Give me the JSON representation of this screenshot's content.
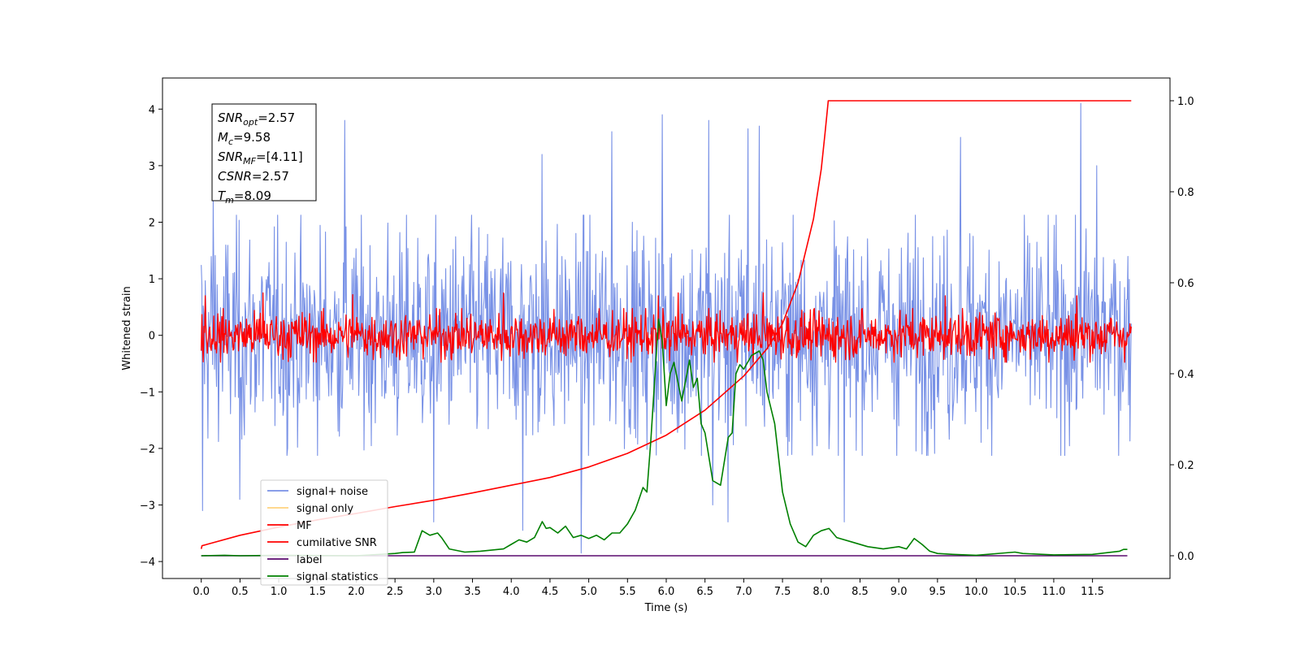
{
  "chart_data": {
    "type": "line",
    "title": "",
    "xlabel": "Time (s)",
    "ylabel_left": "Whitened strain",
    "ylabel_right": "",
    "xlim": [
      -0.5,
      12.5
    ],
    "ylim_left": [
      -4.3,
      4.55
    ],
    "ylim_right": [
      -0.05,
      1.05
    ],
    "grid": false,
    "legend_position": "lower-left",
    "x_ticks": [
      0.0,
      0.5,
      1.0,
      1.5,
      2.0,
      2.5,
      3.0,
      3.5,
      4.0,
      4.5,
      5.0,
      5.5,
      6.0,
      6.5,
      7.0,
      7.5,
      8.0,
      8.5,
      9.0,
      9.5,
      10.0,
      10.5,
      11.0,
      11.5
    ],
    "x_tick_labels": [
      "0.0",
      "0.5",
      "1.0",
      "1.5",
      "2.0",
      "2.5",
      "3.0",
      "3.5",
      "4.0",
      "4.5",
      "5.0",
      "5.5",
      "6.0",
      "6.5",
      "7.0",
      "7.5",
      "8.0",
      "8.5",
      "9.0",
      "9.5",
      "10.0",
      "10.5",
      "11.0",
      "11.5"
    ],
    "y_ticks_left": [
      -4,
      -3,
      -2,
      -1,
      0,
      1,
      2,
      3,
      4
    ],
    "y_tick_labels_left": [
      "−4",
      "−3",
      "−2",
      "−1",
      "0",
      "1",
      "2",
      "3",
      "4"
    ],
    "y_ticks_right": [
      0.0,
      0.2,
      0.4,
      0.6,
      0.8,
      1.0
    ],
    "y_tick_labels_right": [
      "0.0",
      "0.2",
      "0.4",
      "0.6",
      "0.8",
      "1.0"
    ],
    "annotation": {
      "lines": [
        {
          "sym": "SNR",
          "sub": "opt",
          "rest": "=2.57"
        },
        {
          "sym": "M",
          "sub": "c",
          "rest": "=9.58"
        },
        {
          "sym": "SNR",
          "sub": "MF",
          "rest": "=[4.11]"
        },
        {
          "sym": "CSNR",
          "sub": "",
          "rest": "=2.57"
        },
        {
          "sym": "T",
          "sub": "m",
          "rest": "=8.09"
        }
      ]
    },
    "series": [
      {
        "name": "signal+ noise",
        "axis": "left",
        "color": "#7891e6",
        "kind": "noise",
        "x_range": [
          0.0,
          12.0
        ],
        "mean": 0.0,
        "band": [
          -1.7,
          1.7
        ],
        "peaks": [
          [
            0.02,
            -3.1
          ],
          [
            0.15,
            2.4
          ],
          [
            0.5,
            -2.9
          ],
          [
            1.85,
            3.8
          ],
          [
            3.0,
            -3.3
          ],
          [
            4.15,
            -3.45
          ],
          [
            4.4,
            3.2
          ],
          [
            4.9,
            -3.85
          ],
          [
            5.3,
            3.6
          ],
          [
            5.95,
            3.9
          ],
          [
            6.55,
            3.8
          ],
          [
            6.6,
            -3.0
          ],
          [
            6.8,
            -3.3
          ],
          [
            7.05,
            3.65
          ],
          [
            7.2,
            3.7
          ],
          [
            8.3,
            -3.3
          ],
          [
            9.8,
            3.5
          ],
          [
            11.35,
            4.1
          ],
          [
            11.55,
            3.0
          ]
        ]
      },
      {
        "name": "signal only",
        "axis": "left",
        "color": "#ffd27f",
        "kind": "hidden",
        "x": [
          0.0,
          12.0
        ],
        "y": [
          0.0,
          0.0
        ]
      },
      {
        "name": "MF",
        "axis": "left",
        "color": "#ff0000",
        "kind": "noise",
        "x_range": [
          0.0,
          12.0
        ],
        "mean": 0.0,
        "band": [
          -0.38,
          0.38
        ],
        "peaks": [
          [
            0.05,
            0.7
          ],
          [
            0.8,
            0.75
          ],
          [
            1.95,
            0.72
          ],
          [
            3.9,
            0.75
          ],
          [
            5.9,
            0.7
          ],
          [
            6.15,
            0.75
          ],
          [
            7.25,
            0.75
          ],
          [
            9.6,
            0.7
          ],
          [
            11.3,
            0.7
          ]
        ]
      },
      {
        "name": "cumilative SNR",
        "axis": "right",
        "color": "#ff0000",
        "kind": "line",
        "x": [
          0.0,
          0.01,
          0.5,
          1.0,
          1.5,
          2.0,
          2.5,
          3.0,
          3.5,
          4.0,
          4.5,
          5.0,
          5.5,
          6.0,
          6.5,
          7.0,
          7.3,
          7.5,
          7.7,
          7.9,
          8.0,
          8.05,
          8.09,
          8.1,
          12.0
        ],
        "y": [
          0.015,
          0.022,
          0.045,
          0.063,
          0.079,
          0.093,
          0.108,
          0.122,
          0.138,
          0.155,
          0.172,
          0.195,
          0.225,
          0.265,
          0.32,
          0.395,
          0.455,
          0.51,
          0.6,
          0.74,
          0.85,
          0.93,
          1.0,
          1.0,
          1.0
        ]
      },
      {
        "name": "label",
        "axis": "right",
        "color": "#5a0a6e",
        "kind": "line",
        "x": [
          0.0,
          11.95
        ],
        "y": [
          0.0,
          0.0
        ]
      },
      {
        "name": "signal statistics",
        "axis": "right",
        "color": "#008000",
        "kind": "line",
        "x": [
          0.0,
          0.3,
          0.5,
          1.0,
          2.0,
          2.5,
          2.6,
          2.75,
          2.85,
          2.95,
          3.05,
          3.1,
          3.2,
          3.4,
          3.6,
          3.9,
          4.0,
          4.1,
          4.2,
          4.3,
          4.4,
          4.45,
          4.5,
          4.6,
          4.7,
          4.8,
          4.9,
          5.0,
          5.1,
          5.2,
          5.3,
          5.4,
          5.5,
          5.6,
          5.7,
          5.75,
          5.8,
          5.9,
          5.95,
          6.0,
          6.05,
          6.1,
          6.2,
          6.3,
          6.35,
          6.4,
          6.45,
          6.5,
          6.6,
          6.7,
          6.8,
          6.85,
          6.9,
          6.95,
          7.0,
          7.1,
          7.2,
          7.25,
          7.3,
          7.4,
          7.5,
          7.6,
          7.7,
          7.8,
          7.9,
          8.0,
          8.1,
          8.2,
          8.4,
          8.6,
          8.8,
          9.0,
          9.1,
          9.2,
          9.3,
          9.4,
          9.5,
          9.7,
          10.0,
          10.5,
          10.6,
          11.0,
          11.5,
          11.85,
          11.9,
          11.95
        ],
        "y": [
          0.0,
          0.001,
          0.0,
          0.001,
          0.0,
          0.005,
          0.007,
          0.008,
          0.055,
          0.045,
          0.05,
          0.04,
          0.015,
          0.008,
          0.01,
          0.015,
          0.025,
          0.035,
          0.03,
          0.04,
          0.075,
          0.06,
          0.062,
          0.05,
          0.065,
          0.04,
          0.045,
          0.038,
          0.045,
          0.035,
          0.05,
          0.05,
          0.07,
          0.1,
          0.15,
          0.14,
          0.25,
          0.52,
          0.47,
          0.33,
          0.4,
          0.425,
          0.34,
          0.43,
          0.37,
          0.39,
          0.29,
          0.27,
          0.165,
          0.155,
          0.26,
          0.27,
          0.4,
          0.42,
          0.41,
          0.44,
          0.45,
          0.43,
          0.36,
          0.29,
          0.14,
          0.07,
          0.03,
          0.02,
          0.045,
          0.055,
          0.06,
          0.04,
          0.03,
          0.02,
          0.015,
          0.02,
          0.015,
          0.038,
          0.025,
          0.01,
          0.005,
          0.003,
          0.001,
          0.008,
          0.005,
          0.002,
          0.003,
          0.01,
          0.014,
          0.014
        ]
      }
    ]
  }
}
